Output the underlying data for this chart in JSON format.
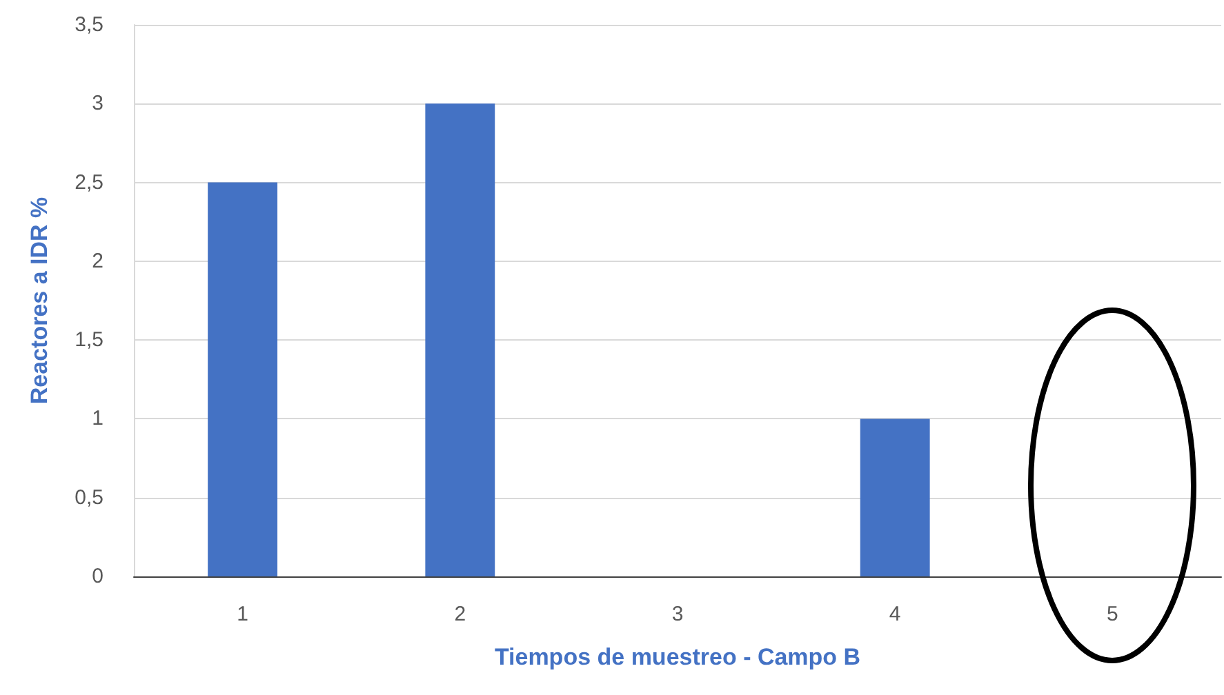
{
  "chart_data": {
    "type": "bar",
    "categories": [
      "1",
      "2",
      "3",
      "4",
      "5"
    ],
    "values": [
      2.5,
      3,
      0,
      1,
      0
    ],
    "color": "#4472c4",
    "xlabel": "Tiempos de muestreo - Campo B",
    "ylabel": "Reactores a IDR %",
    "ylim": [
      0,
      3.5
    ],
    "yticks": [
      0,
      {
        "value": 0.5,
        "label": "0,5"
      },
      1,
      {
        "value": 1.5,
        "label": "1,5"
      },
      2,
      {
        "value": 2.5,
        "label": "2,5"
      },
      3,
      {
        "value": 3.5,
        "label": "3,5"
      }
    ],
    "grid": "y"
  }
}
